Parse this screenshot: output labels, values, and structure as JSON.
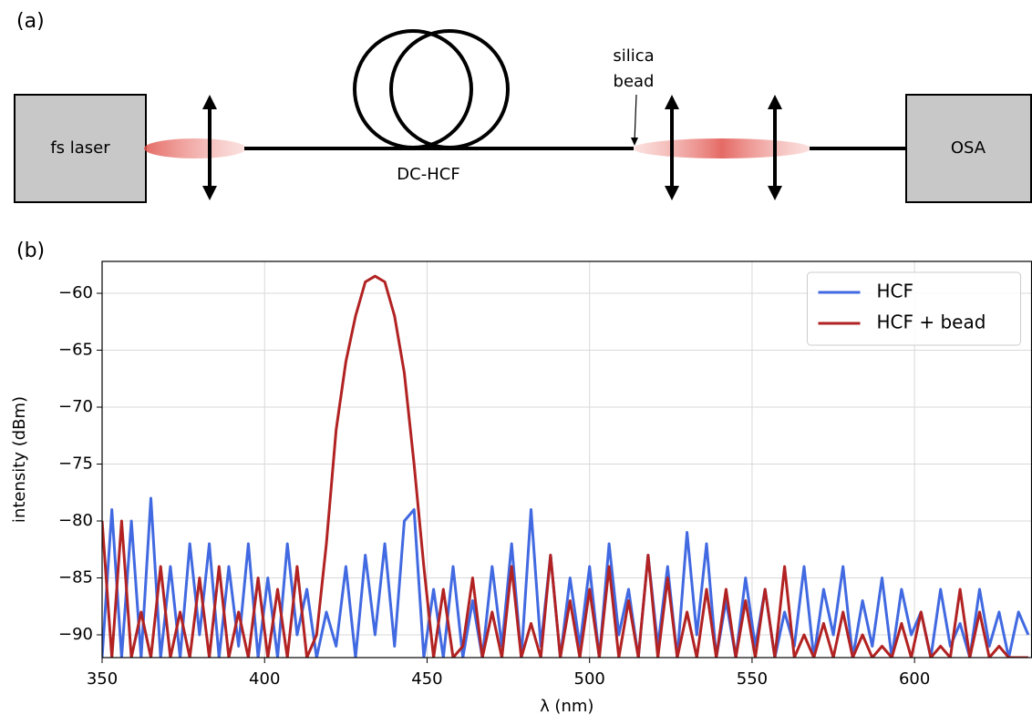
{
  "diagram": {
    "panel_a": "(a)",
    "panel_b": "(b)",
    "source": "fs laser",
    "detector": "OSA",
    "fiber": "DC-HCF",
    "bead_label": [
      "silica",
      "bead"
    ]
  },
  "chart_data": {
    "type": "line",
    "x_label": "λ (nm)",
    "y_label": "intensity (dBm)",
    "x": [
      350,
      353,
      356,
      359,
      362,
      365,
      368,
      371,
      374,
      377,
      380,
      383,
      386,
      389,
      392,
      395,
      398,
      401,
      404,
      407,
      410,
      413,
      416,
      419,
      422,
      425,
      428,
      431,
      434,
      437,
      440,
      443,
      446,
      449,
      452,
      455,
      458,
      461,
      464,
      467,
      470,
      473,
      476,
      479,
      482,
      485,
      488,
      491,
      494,
      497,
      500,
      503,
      506,
      509,
      512,
      515,
      518,
      521,
      524,
      527,
      530,
      533,
      536,
      539,
      542,
      545,
      548,
      551,
      554,
      557,
      560,
      563,
      566,
      569,
      572,
      575,
      578,
      581,
      584,
      587,
      590,
      593,
      596,
      599,
      602,
      605,
      608,
      611,
      614,
      617,
      620,
      623,
      626,
      629,
      632,
      635
    ],
    "series": [
      {
        "name": "HCF",
        "color": "#4169e1",
        "values": [
          -92,
          -79,
          -92,
          -80,
          -92,
          -78,
          -92,
          -84,
          -92,
          -82,
          -90,
          -82,
          -92,
          -84,
          -91,
          -82,
          -92,
          -85,
          -92,
          -82,
          -90,
          -86,
          -92,
          -88,
          -91,
          -84,
          -92,
          -83,
          -90,
          -82,
          -91,
          -80,
          -79,
          -92,
          -86,
          -92,
          -84,
          -92,
          -87,
          -92,
          -84,
          -91,
          -82,
          -92,
          -79,
          -91,
          -83,
          -92,
          -85,
          -91,
          -84,
          -92,
          -82,
          -90,
          -86,
          -92,
          -83,
          -91,
          -84,
          -92,
          -81,
          -90,
          -82,
          -92,
          -87,
          -92,
          -85,
          -91,
          -86,
          -92,
          -88,
          -91,
          -84,
          -92,
          -86,
          -90,
          -84,
          -92,
          -87,
          -91,
          -85,
          -92,
          -86,
          -90,
          -88,
          -92,
          -86,
          -91,
          -89,
          -92,
          -86,
          -91,
          -88,
          -92,
          -88,
          -90
        ]
      },
      {
        "name": "HCF + bead",
        "color": "#b22222",
        "values": [
          -80,
          -92,
          -80,
          -92,
          -88,
          -92,
          -84,
          -92,
          -88,
          -92,
          -85,
          -92,
          -84,
          -92,
          -88,
          -92,
          -85,
          -92,
          -86,
          -92,
          -84,
          -92,
          -90,
          -82,
          -72,
          -66,
          -62,
          -59,
          -58.5,
          -59,
          -62,
          -67,
          -75,
          -84,
          -92,
          -86,
          -92,
          -91,
          -85,
          -92,
          -88,
          -92,
          -84,
          -92,
          -89,
          -92,
          -83,
          -92,
          -87,
          -92,
          -86,
          -92,
          -84,
          -92,
          -87,
          -92,
          -83,
          -92,
          -85,
          -92,
          -88,
          -92,
          -86,
          -92,
          -86,
          -92,
          -87,
          -92,
          -86,
          -92,
          -84,
          -92,
          -90,
          -92,
          -89,
          -92,
          -88,
          -92,
          -90,
          -92,
          -91,
          -92,
          -89,
          -92,
          -88,
          -92,
          -91,
          -92,
          -86,
          -92,
          -88,
          -92,
          -91,
          -92,
          -92,
          -92
        ]
      }
    ],
    "xlim": [
      350,
      636
    ],
    "ylim": [
      -92,
      -57.2
    ],
    "xticks": [
      350,
      400,
      450,
      500,
      550,
      600
    ],
    "yticks": [
      {
        "value": -90,
        "label": "−90"
      },
      {
        "value": -85,
        "label": "−85"
      },
      {
        "value": -80,
        "label": "−80"
      },
      {
        "value": -75,
        "label": "−75"
      },
      {
        "value": -70,
        "label": "−70"
      },
      {
        "value": -65,
        "label": "−65"
      },
      {
        "value": -60,
        "label": "−60"
      }
    ],
    "grid": true,
    "legend": "upper right"
  }
}
